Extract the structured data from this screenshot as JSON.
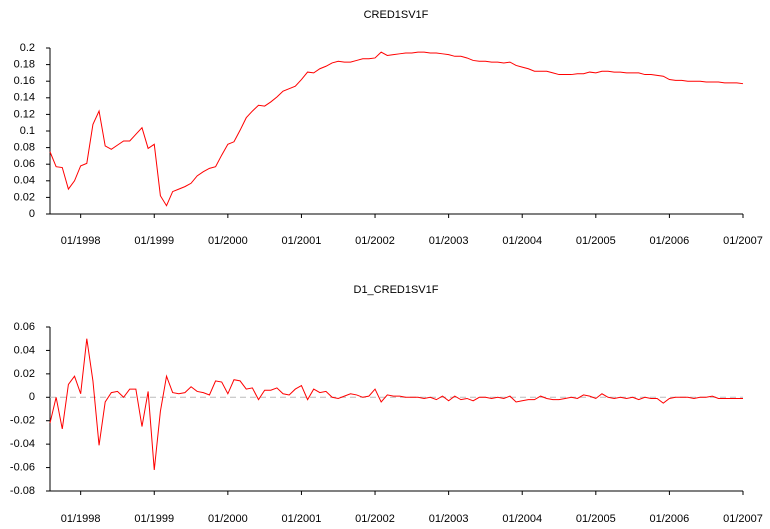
{
  "chart_data": [
    {
      "type": "line",
      "title": "CRED1SV1F",
      "color": "#ff0000",
      "categories": [
        null,
        null,
        null,
        null,
        null,
        "01/1998",
        null,
        null,
        null,
        null,
        null,
        null,
        null,
        null,
        null,
        null,
        null,
        "01/1999",
        null,
        null,
        null,
        null,
        null,
        null,
        null,
        null,
        null,
        null,
        null,
        "01/2000",
        null,
        null,
        null,
        null,
        null,
        null,
        null,
        null,
        null,
        null,
        null,
        "01/2001",
        null,
        null,
        null,
        null,
        null,
        null,
        null,
        null,
        null,
        null,
        null,
        "01/2002",
        null,
        null,
        null,
        null,
        null,
        null,
        null,
        null,
        null,
        null,
        null,
        "01/2003",
        null,
        null,
        null,
        null,
        null,
        null,
        null,
        null,
        null,
        null,
        null,
        "01/2004",
        null,
        null,
        null,
        null,
        null,
        null,
        null,
        null,
        null,
        null,
        null,
        "01/2005",
        null,
        null,
        null,
        null,
        null,
        null,
        null,
        null,
        null,
        null,
        null,
        "01/2006",
        null,
        null,
        null,
        null,
        null,
        null,
        null,
        null,
        null,
        null,
        null,
        "01/2007"
      ],
      "values": [
        0.075,
        0.057,
        0.056,
        0.03,
        0.04,
        0.058,
        0.061,
        0.108,
        0.124,
        0.082,
        0.078,
        0.083,
        0.088,
        0.088,
        0.096,
        0.104,
        0.079,
        0.084,
        0.022,
        0.01,
        0.027,
        0.03,
        0.033,
        0.037,
        0.046,
        0.051,
        0.055,
        0.057,
        0.071,
        0.084,
        0.087,
        0.101,
        0.116,
        0.124,
        0.131,
        0.13,
        0.135,
        0.141,
        0.148,
        0.151,
        0.154,
        0.162,
        0.171,
        0.17,
        0.175,
        0.178,
        0.182,
        0.184,
        0.183,
        0.183,
        0.185,
        0.187,
        0.187,
        0.188,
        0.195,
        0.191,
        0.192,
        0.193,
        0.194,
        0.194,
        0.195,
        0.195,
        0.194,
        0.194,
        0.193,
        0.192,
        0.19,
        0.19,
        0.188,
        0.185,
        0.184,
        0.184,
        0.183,
        0.183,
        0.182,
        0.183,
        0.179,
        0.177,
        0.175,
        0.172,
        0.172,
        0.172,
        0.17,
        0.168,
        0.168,
        0.168,
        0.169,
        0.169,
        0.171,
        0.17,
        0.172,
        0.172,
        0.171,
        0.171,
        0.17,
        0.17,
        0.17,
        0.168,
        0.168,
        0.167,
        0.166,
        0.162,
        0.161,
        0.161,
        0.16,
        0.16,
        0.16,
        0.159,
        0.159,
        0.159,
        0.158,
        0.158,
        0.158,
        0.157
      ],
      "ylim": [
        0,
        0.2
      ],
      "yticks": [
        0,
        0.02,
        0.04,
        0.06,
        0.08,
        0.1,
        0.12,
        0.14,
        0.16,
        0.18,
        0.2
      ],
      "zero_line": false
    },
    {
      "type": "line",
      "title": "D1_CRED1SV1F",
      "color": "#ff0000",
      "categories": [
        null,
        null,
        null,
        null,
        null,
        "01/1998",
        null,
        null,
        null,
        null,
        null,
        null,
        null,
        null,
        null,
        null,
        null,
        "01/1999",
        null,
        null,
        null,
        null,
        null,
        null,
        null,
        null,
        null,
        null,
        null,
        "01/2000",
        null,
        null,
        null,
        null,
        null,
        null,
        null,
        null,
        null,
        null,
        null,
        "01/2001",
        null,
        null,
        null,
        null,
        null,
        null,
        null,
        null,
        null,
        null,
        null,
        "01/2002",
        null,
        null,
        null,
        null,
        null,
        null,
        null,
        null,
        null,
        null,
        null,
        "01/2003",
        null,
        null,
        null,
        null,
        null,
        null,
        null,
        null,
        null,
        null,
        null,
        "01/2004",
        null,
        null,
        null,
        null,
        null,
        null,
        null,
        null,
        null,
        null,
        null,
        "01/2005",
        null,
        null,
        null,
        null,
        null,
        null,
        null,
        null,
        null,
        null,
        null,
        "01/2006",
        null,
        null,
        null,
        null,
        null,
        null,
        null,
        null,
        null,
        null,
        null,
        "01/2007"
      ],
      "values": [
        -0.022,
        0.0,
        -0.027,
        0.011,
        0.018,
        0.003,
        0.05,
        0.014,
        -0.041,
        -0.004,
        0.004,
        0.005,
        0.0,
        0.007,
        0.007,
        -0.025,
        0.005,
        -0.062,
        -0.012,
        0.018,
        0.004,
        0.003,
        0.004,
        0.009,
        0.005,
        0.004,
        0.002,
        0.014,
        0.013,
        0.003,
        0.015,
        0.014,
        0.007,
        0.008,
        -0.002,
        0.006,
        0.006,
        0.008,
        0.003,
        0.002,
        0.007,
        0.01,
        -0.002,
        0.007,
        0.004,
        0.005,
        0.0,
        -0.001,
        0.001,
        0.003,
        0.002,
        0.0,
        0.001,
        0.007,
        -0.004,
        0.002,
        0.001,
        0.001,
        0.0,
        0.0,
        0.0,
        -0.001,
        0.0,
        -0.002,
        0.001,
        -0.003,
        0.001,
        -0.002,
        -0.001,
        -0.003,
        0.0,
        0.0,
        -0.001,
        0.0,
        -0.001,
        0.001,
        -0.004,
        -0.003,
        -0.002,
        -0.002,
        0.001,
        -0.001,
        -0.002,
        -0.002,
        -0.001,
        0.0,
        -0.001,
        0.002,
        0.001,
        -0.001,
        0.003,
        0.0,
        -0.001,
        0.0,
        -0.001,
        0.0,
        -0.002,
        0.0,
        -0.001,
        -0.001,
        -0.005,
        -0.001,
        0.0,
        0.0,
        0.0,
        -0.001,
        0.0,
        0.0,
        0.001,
        -0.001,
        -0.001,
        -0.001,
        -0.001,
        -0.001
      ],
      "ylim": [
        -0.08,
        0.06
      ],
      "yticks": [
        -0.08,
        -0.06,
        -0.04,
        -0.02,
        0,
        0.02,
        0.04,
        0.06
      ],
      "zero_line": true
    }
  ]
}
